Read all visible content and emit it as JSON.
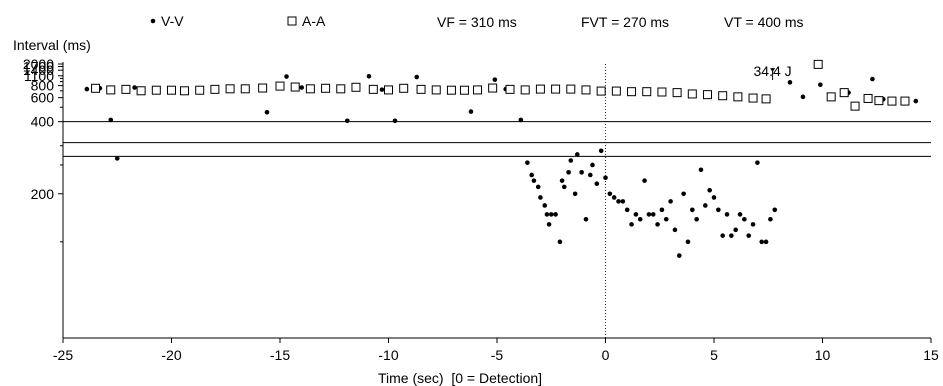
{
  "chart_data": {
    "type": "scatter",
    "xlabel": "Time (sec)  [0 = Detection]",
    "ylabel": "Interval (ms)",
    "xlim": [
      -25,
      15
    ],
    "x_ticks": [
      -25,
      -20,
      -15,
      -10,
      -5,
      0,
      5,
      10,
      15
    ],
    "y_ticks": [
      2000,
      1700,
      1400,
      1100,
      800,
      600,
      400,
      200
    ],
    "y_scale": "reciprocal",
    "zones": {
      "vf": "VF = 310 ms",
      "fvt": "FVT = 270 ms",
      "vt": "VT = 400 ms"
    },
    "zone_values_ms": {
      "vf": 310,
      "fvt": 270,
      "vt": 400
    },
    "detection_line_x": 0,
    "annotation": {
      "text": "34.4 J",
      "x": 7.7,
      "arrow_to_y": 1280
    },
    "legend": [
      {
        "name": "V-V",
        "marker": "dot"
      },
      {
        "name": "A-A",
        "marker": "square"
      }
    ],
    "series": [
      {
        "name": "V-V",
        "marker": "dot",
        "points": [
          [
            -23.9,
            730
          ],
          [
            -23.3,
            745
          ],
          [
            -22.8,
            410
          ],
          [
            -22.5,
            265
          ],
          [
            -21.7,
            760
          ],
          [
            -15.6,
            460
          ],
          [
            -14.7,
            1070
          ],
          [
            -14.0,
            760
          ],
          [
            -11.9,
            405
          ],
          [
            -10.9,
            1080
          ],
          [
            -10.3,
            720
          ],
          [
            -9.7,
            405
          ],
          [
            -8.7,
            1050
          ],
          [
            -6.2,
            465
          ],
          [
            -5.1,
            960
          ],
          [
            -4.6,
            730
          ],
          [
            -3.9,
            410
          ],
          [
            -3.6,
            255
          ],
          [
            -3.4,
            230
          ],
          [
            -3.3,
            220
          ],
          [
            -3.1,
            210
          ],
          [
            -3.0,
            195
          ],
          [
            -2.8,
            185
          ],
          [
            -2.7,
            175
          ],
          [
            -2.6,
            165
          ],
          [
            -2.5,
            175
          ],
          [
            -2.3,
            175
          ],
          [
            -2.1,
            150
          ],
          [
            -2.0,
            220
          ],
          [
            -1.9,
            210
          ],
          [
            -1.7,
            235
          ],
          [
            -1.6,
            260
          ],
          [
            -1.4,
            200
          ],
          [
            -1.3,
            275
          ],
          [
            -1.1,
            235
          ],
          [
            -0.9,
            170
          ],
          [
            -0.7,
            230
          ],
          [
            -0.6,
            250
          ],
          [
            -0.4,
            215
          ],
          [
            -0.2,
            285
          ],
          [
            0.0,
            225
          ],
          [
            0.2,
            200
          ],
          [
            0.4,
            195
          ],
          [
            0.6,
            190
          ],
          [
            0.8,
            190
          ],
          [
            1.0,
            180
          ],
          [
            1.2,
            165
          ],
          [
            1.4,
            175
          ],
          [
            1.6,
            170
          ],
          [
            1.8,
            220
          ],
          [
            2.0,
            175
          ],
          [
            2.2,
            175
          ],
          [
            2.4,
            165
          ],
          [
            2.6,
            180
          ],
          [
            2.8,
            170
          ],
          [
            3.0,
            190
          ],
          [
            3.2,
            160
          ],
          [
            3.4,
            140
          ],
          [
            3.6,
            200
          ],
          [
            3.8,
            150
          ],
          [
            4.0,
            180
          ],
          [
            4.2,
            170
          ],
          [
            4.4,
            240
          ],
          [
            4.6,
            185
          ],
          [
            4.8,
            205
          ],
          [
            5.0,
            195
          ],
          [
            5.2,
            180
          ],
          [
            5.4,
            155
          ],
          [
            5.6,
            175
          ],
          [
            5.8,
            155
          ],
          [
            6.0,
            160
          ],
          [
            6.2,
            175
          ],
          [
            6.4,
            170
          ],
          [
            6.6,
            155
          ],
          [
            6.8,
            165
          ],
          [
            7.0,
            255
          ],
          [
            7.2,
            150
          ],
          [
            7.4,
            150
          ],
          [
            7.6,
            170
          ],
          [
            7.8,
            180
          ],
          [
            8.5,
            880
          ],
          [
            9.1,
            610
          ],
          [
            9.9,
            820
          ],
          [
            11.2,
            670
          ],
          [
            12.3,
            980
          ],
          [
            12.8,
            580
          ],
          [
            14.3,
            560
          ]
        ]
      },
      {
        "name": "A-A",
        "marker": "square",
        "points": [
          [
            -23.5,
            745
          ],
          [
            -22.8,
            715
          ],
          [
            -22.1,
            725
          ],
          [
            -21.4,
            700
          ],
          [
            -20.7,
            710
          ],
          [
            -20.0,
            710
          ],
          [
            -19.4,
            700
          ],
          [
            -18.7,
            710
          ],
          [
            -18.0,
            725
          ],
          [
            -17.3,
            735
          ],
          [
            -16.6,
            735
          ],
          [
            -15.8,
            750
          ],
          [
            -15.0,
            790
          ],
          [
            -14.3,
            770
          ],
          [
            -13.6,
            735
          ],
          [
            -12.9,
            745
          ],
          [
            -12.2,
            735
          ],
          [
            -11.5,
            765
          ],
          [
            -10.7,
            725
          ],
          [
            -10.0,
            715
          ],
          [
            -9.3,
            745
          ],
          [
            -8.5,
            725
          ],
          [
            -7.8,
            715
          ],
          [
            -7.1,
            710
          ],
          [
            -6.5,
            710
          ],
          [
            -5.9,
            715
          ],
          [
            -5.2,
            750
          ],
          [
            -4.4,
            725
          ],
          [
            -3.7,
            715
          ],
          [
            -3.0,
            730
          ],
          [
            -2.3,
            730
          ],
          [
            -1.6,
            730
          ],
          [
            -0.9,
            715
          ],
          [
            -0.2,
            695
          ],
          [
            0.5,
            695
          ],
          [
            1.2,
            685
          ],
          [
            1.9,
            685
          ],
          [
            2.6,
            680
          ],
          [
            3.3,
            670
          ],
          [
            4.0,
            650
          ],
          [
            4.7,
            640
          ],
          [
            5.4,
            625
          ],
          [
            6.1,
            610
          ],
          [
            6.8,
            595
          ],
          [
            7.4,
            585
          ],
          [
            9.8,
            1950
          ],
          [
            10.4,
            610
          ],
          [
            11.0,
            670
          ],
          [
            11.5,
            510
          ],
          [
            12.1,
            590
          ],
          [
            12.6,
            565
          ],
          [
            13.2,
            560
          ],
          [
            13.8,
            560
          ]
        ]
      }
    ]
  }
}
